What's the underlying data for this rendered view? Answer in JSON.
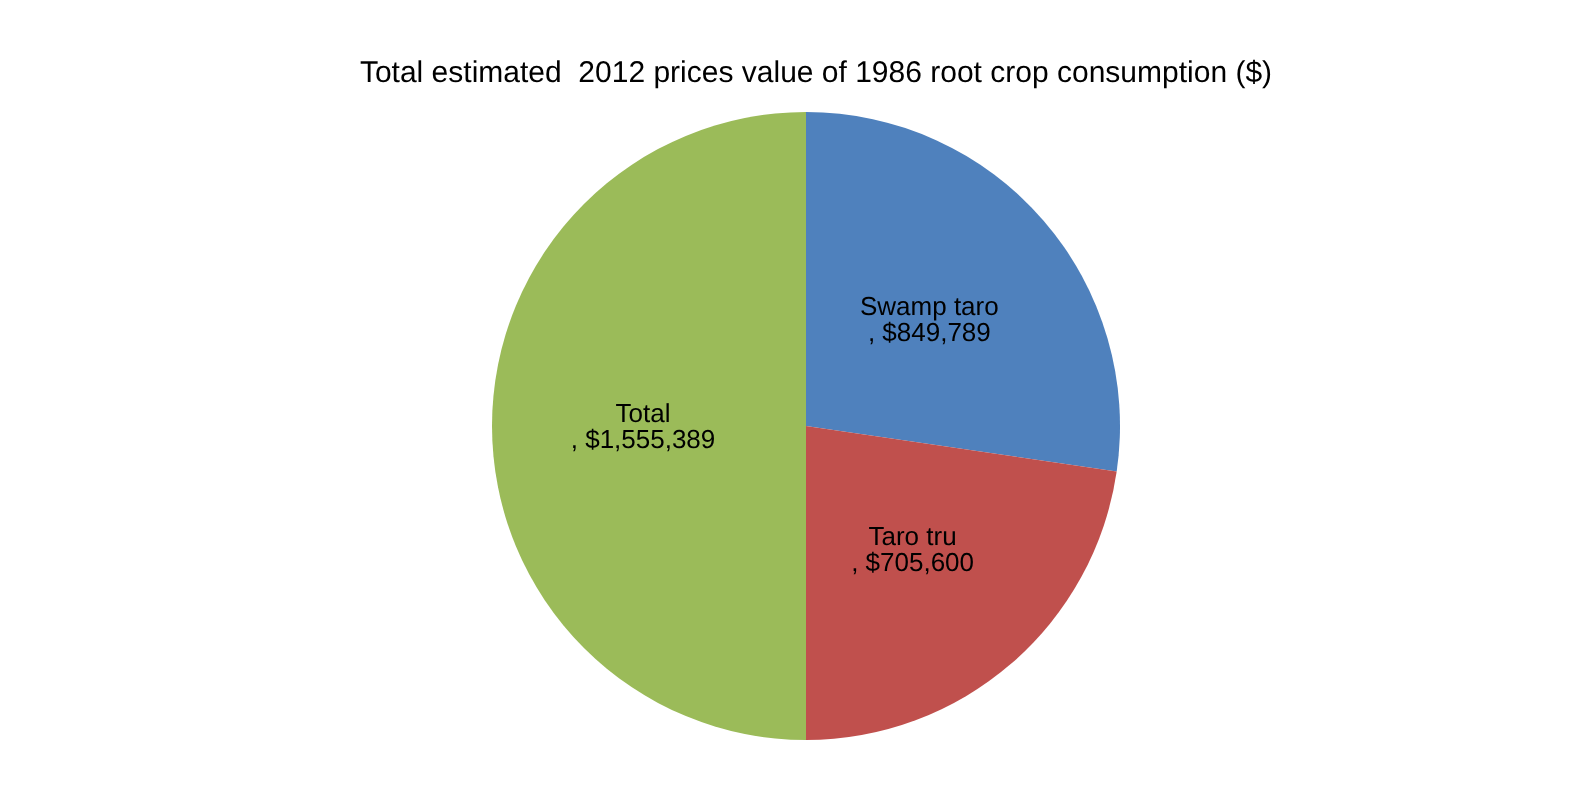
{
  "chart_data": {
    "type": "pie",
    "title": "Total estimated  2012 prices value of 1986 root crop consumption ($)",
    "categories": [
      "Swamp taro",
      "Taro tru",
      "Total"
    ],
    "values": [
      849789,
      705600,
      1555389
    ],
    "colors": [
      "#4f81bd",
      "#c0504d",
      "#9bbb59"
    ],
    "value_labels": [
      ", $849,789",
      ", $705,600",
      ", $1,555,389"
    ],
    "legend": false
  }
}
